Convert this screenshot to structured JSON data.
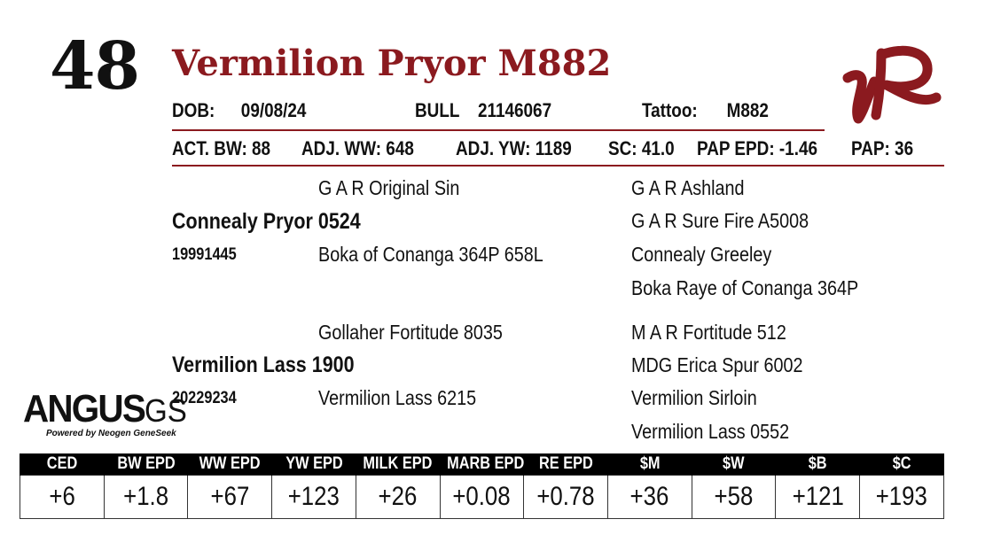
{
  "lot_number": "48",
  "animal_name": "Vermilion Pryor M882",
  "info": {
    "dob_label": "DOB:",
    "dob": "09/08/24",
    "sex": "BULL",
    "registration": "21146067",
    "tattoo_label": "Tattoo:",
    "tattoo": "M882"
  },
  "stats": {
    "act_bw": "ACT. BW: 88",
    "adj_ww": "ADJ. WW: 648",
    "adj_yw": "ADJ. YW: 1189",
    "sc": "SC: 41.0",
    "pap_epd": "PAP EPD: -1.46",
    "pap": "PAP: 36"
  },
  "pedigree": {
    "sire": {
      "name": "Connealy Pryor 0524",
      "reg": "19991445",
      "sire": "G A R Original Sin",
      "dam": "Boka of Conanga 364P 658L",
      "ss": "G A R Ashland",
      "sd": "G A R Sure Fire A5008",
      "ds": "Connealy Greeley",
      "dd": "Boka Raye of Conanga 364P"
    },
    "dam": {
      "name": "Vermilion Lass 1900",
      "reg": "20229234",
      "sire": "Gollaher Fortitude 8035",
      "dam": "Vermilion Lass 6215",
      "ss": "M A R Fortitude 512",
      "sd": "MDG Erica Spur 6002",
      "ds": "Vermilion Sirloin",
      "dd": "Vermilion Lass 0552"
    }
  },
  "logo": {
    "main": "ANGUS",
    "suffix": "GS",
    "tagline": "Powered by Neogen GeneSeek"
  },
  "brand_mark": "VR brand logo",
  "colors": {
    "accent": "#8b1a1f",
    "header_bg": "#000000"
  },
  "epd": {
    "headers": [
      "CED",
      "BW EPD",
      "WW EPD",
      "YW EPD",
      "MILK EPD",
      "MARB EPD",
      "RE EPD",
      "$M",
      "$W",
      "$B",
      "$C"
    ],
    "values": [
      "+6",
      "+1.8",
      "+67",
      "+123",
      "+26",
      "+0.08",
      "+0.78",
      "+36",
      "+58",
      "+121",
      "+193"
    ]
  }
}
